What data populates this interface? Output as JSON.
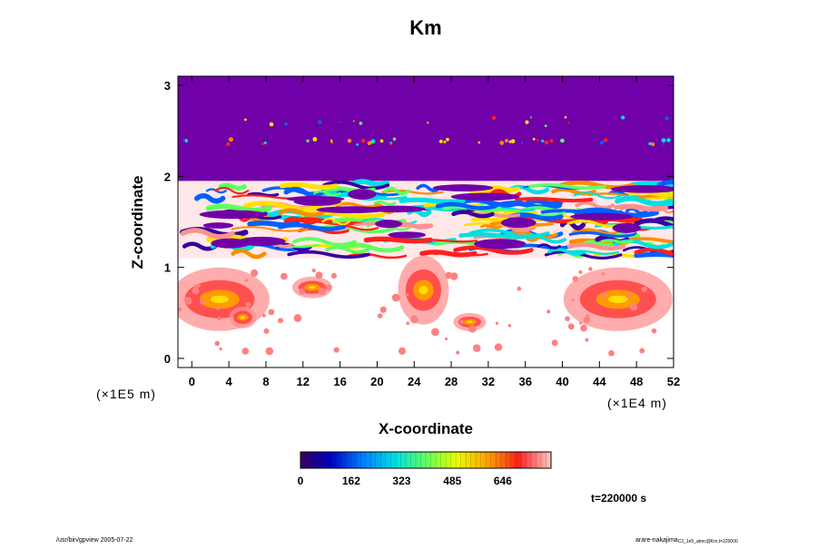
{
  "chart_data": {
    "type": "heatmap",
    "title": "Km",
    "xlabel": "X-coordinate",
    "ylabel": "Z-coordinate",
    "x_unit": "(×1E4 m)",
    "y_unit": "(×1E5 m)",
    "xlim": [
      -1.5,
      52
    ],
    "ylim": [
      -0.1,
      3.1
    ],
    "x_ticks": [
      0,
      4,
      8,
      12,
      16,
      20,
      24,
      28,
      32,
      36,
      40,
      44,
      48,
      52
    ],
    "y_ticks": [
      0,
      1,
      2,
      3
    ],
    "colorbar": {
      "range": [
        0,
        800
      ],
      "ticks": [
        0,
        162,
        323,
        485,
        646
      ]
    },
    "time_label": "t=220000 s",
    "regions": [
      {
        "name": "upper-stable-layer",
        "z_range": [
          1.9,
          3.1
        ],
        "value": 0
      },
      {
        "name": "turbulent-layer",
        "z_range": [
          1.1,
          1.95
        ],
        "value_range": [
          0,
          800
        ]
      },
      {
        "name": "lower-convective-plumes",
        "z_range": [
          0.1,
          1.0
        ],
        "value_range": [
          0,
          800
        ]
      }
    ]
  },
  "footer": {
    "left": "/usr/bin/gpview 2005-07-22",
    "right_main": "arare-nakajima",
    "right_sub": "C3_1e5_atmc@Km,t=220000"
  }
}
